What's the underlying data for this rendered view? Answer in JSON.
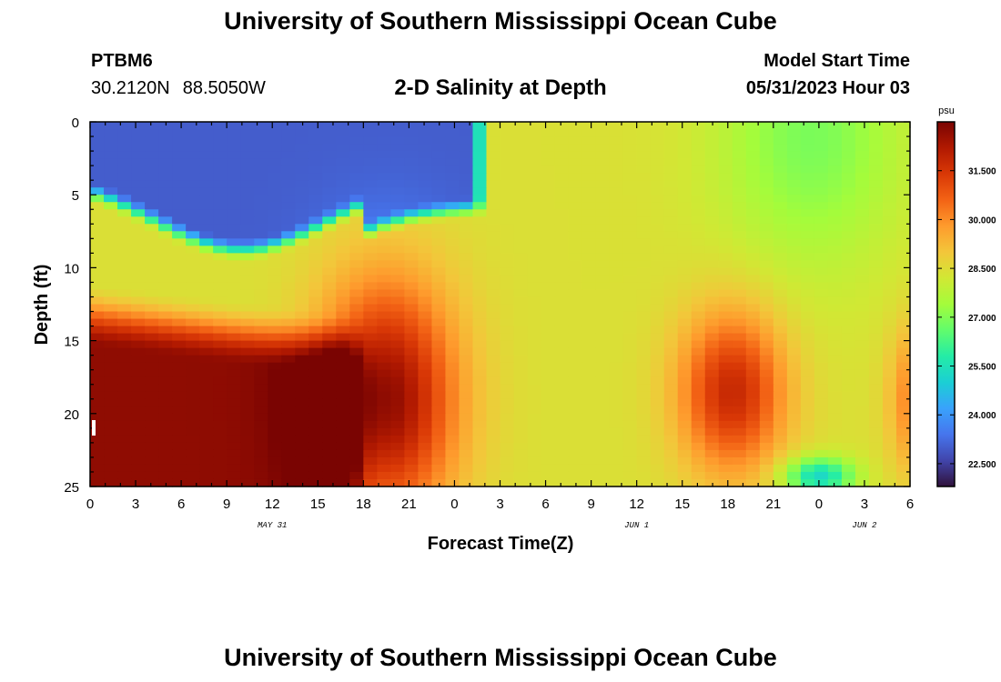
{
  "header": {
    "title": "University of Southern Mississippi Ocean Cube",
    "station": "PTBM6",
    "latitude": "30.2120N",
    "longitude": "88.5050W",
    "subtitle": "2-D Salinity at Depth",
    "model_start_label": "Model Start Time",
    "model_start_value": "05/31/2023 Hour 03"
  },
  "footer": {
    "title": "University of Southern Mississippi Ocean Cube"
  },
  "colors": {
    "colormap": [
      "#30123b",
      "#4145ab",
      "#4675ed",
      "#39a2fc",
      "#1bcfd4",
      "#24eca6",
      "#61fc6c",
      "#a4fc3b",
      "#d1e834",
      "#f3c63a",
      "#fe9b2d",
      "#f36315",
      "#d93806",
      "#b11901",
      "#7a0402"
    ],
    "frame": "#000000"
  },
  "chart_data": {
    "type": "heatmap",
    "title": "2-D Salinity at Depth",
    "xlabel": "Forecast Time(Z)",
    "ylabel": "Depth (ft)",
    "x_range_hours": [
      0,
      54
    ],
    "x_ticks": [
      {
        "hour": 0,
        "label": "0"
      },
      {
        "hour": 3,
        "label": "3"
      },
      {
        "hour": 6,
        "label": "6"
      },
      {
        "hour": 9,
        "label": "9"
      },
      {
        "hour": 12,
        "label": "12"
      },
      {
        "hour": 15,
        "label": "15"
      },
      {
        "hour": 18,
        "label": "18"
      },
      {
        "hour": 21,
        "label": "21"
      },
      {
        "hour": 24,
        "label": "0"
      },
      {
        "hour": 27,
        "label": "3"
      },
      {
        "hour": 30,
        "label": "6"
      },
      {
        "hour": 33,
        "label": "9"
      },
      {
        "hour": 36,
        "label": "12"
      },
      {
        "hour": 39,
        "label": "15"
      },
      {
        "hour": 42,
        "label": "18"
      },
      {
        "hour": 45,
        "label": "21"
      },
      {
        "hour": 48,
        "label": "0"
      },
      {
        "hour": 51,
        "label": "3"
      },
      {
        "hour": 54,
        "label": "6"
      }
    ],
    "date_labels": [
      {
        "hour": 12,
        "label": "MAY 31"
      },
      {
        "hour": 36,
        "label": "JUN 1"
      },
      {
        "hour": 51,
        "label": "JUN 2"
      }
    ],
    "y_range_ft": [
      0,
      25
    ],
    "y_ticks": [
      0,
      5,
      10,
      15,
      20,
      25
    ],
    "y_tick_labels": [
      "0",
      "5",
      "10",
      "15",
      "20",
      "25"
    ],
    "colorbar": {
      "unit": "psu",
      "range": [
        21.8,
        33.0
      ],
      "ticks": [
        22.5,
        24.0,
        25.5,
        27.0,
        28.5,
        30.0,
        31.5
      ],
      "tick_labels": [
        "22.500",
        "24.000",
        "25.500",
        "27.000",
        "28.500",
        "30.000",
        "31.500"
      ]
    },
    "features": [
      {
        "label": "surface fresh layer",
        "x_hours": [
          0,
          26
        ],
        "y_ft": [
          0,
          8
        ],
        "value_psu": 23.0
      },
      {
        "label": "bottom saline core",
        "x_hours": [
          0,
          25
        ],
        "y_ft": [
          13,
          25
        ],
        "value_psu": 32.5
      },
      {
        "label": "saline core",
        "x_hours": [
          39,
          46
        ],
        "y_ft": [
          13,
          24
        ],
        "value_psu": 31.8
      },
      {
        "label": "mid-depth mixed water",
        "x_hours": [
          26,
          54
        ],
        "y_ft": [
          0,
          25
        ],
        "value_psu": 28.5
      }
    ]
  }
}
